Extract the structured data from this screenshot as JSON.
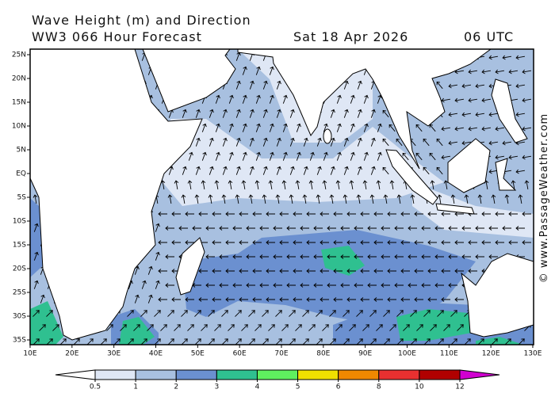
{
  "header": {
    "title": "Wave Height (m) and Direction",
    "model": "WW3 066 Hour Forecast",
    "date": "Sat 18 Apr 2026",
    "time": "06 UTC"
  },
  "map": {
    "lat_ticks": [
      {
        "value": 25,
        "label": "25N"
      },
      {
        "value": 20,
        "label": "20N"
      },
      {
        "value": 15,
        "label": "15N"
      },
      {
        "value": 10,
        "label": "10N"
      },
      {
        "value": 5,
        "label": "5N"
      },
      {
        "value": 0,
        "label": "EQ"
      },
      {
        "value": -5,
        "label": "5S"
      },
      {
        "value": -10,
        "label": "10S"
      },
      {
        "value": -15,
        "label": "15S"
      },
      {
        "value": -20,
        "label": "20S"
      },
      {
        "value": -25,
        "label": "25S"
      },
      {
        "value": -30,
        "label": "30S"
      },
      {
        "value": -35,
        "label": "35S"
      }
    ],
    "lon_ticks": [
      {
        "value": 10,
        "label": "10E"
      },
      {
        "value": 20,
        "label": "20E"
      },
      {
        "value": 30,
        "label": "30E"
      },
      {
        "value": 40,
        "label": "40E"
      },
      {
        "value": 50,
        "label": "50E"
      },
      {
        "value": 60,
        "label": "60E"
      },
      {
        "value": 70,
        "label": "70E"
      },
      {
        "value": 80,
        "label": "80E"
      },
      {
        "value": 90,
        "label": "90E"
      },
      {
        "value": 100,
        "label": "100E"
      },
      {
        "value": 110,
        "label": "110E"
      },
      {
        "value": 120,
        "label": "120E"
      },
      {
        "value": 130,
        "label": "130E"
      }
    ]
  },
  "colorbar": {
    "ticks": [
      0.5,
      1,
      2,
      3,
      4,
      5,
      6,
      8,
      10,
      12
    ],
    "colors": [
      "#ffffff",
      "#dfe7f5",
      "#a8c0e0",
      "#6b90d0",
      "#2fc090",
      "#5ff05f",
      "#f0e000",
      "#f08800",
      "#e83030",
      "#b00000",
      "#d000d0"
    ]
  },
  "watermark": "© www.PassageWeather.com"
}
